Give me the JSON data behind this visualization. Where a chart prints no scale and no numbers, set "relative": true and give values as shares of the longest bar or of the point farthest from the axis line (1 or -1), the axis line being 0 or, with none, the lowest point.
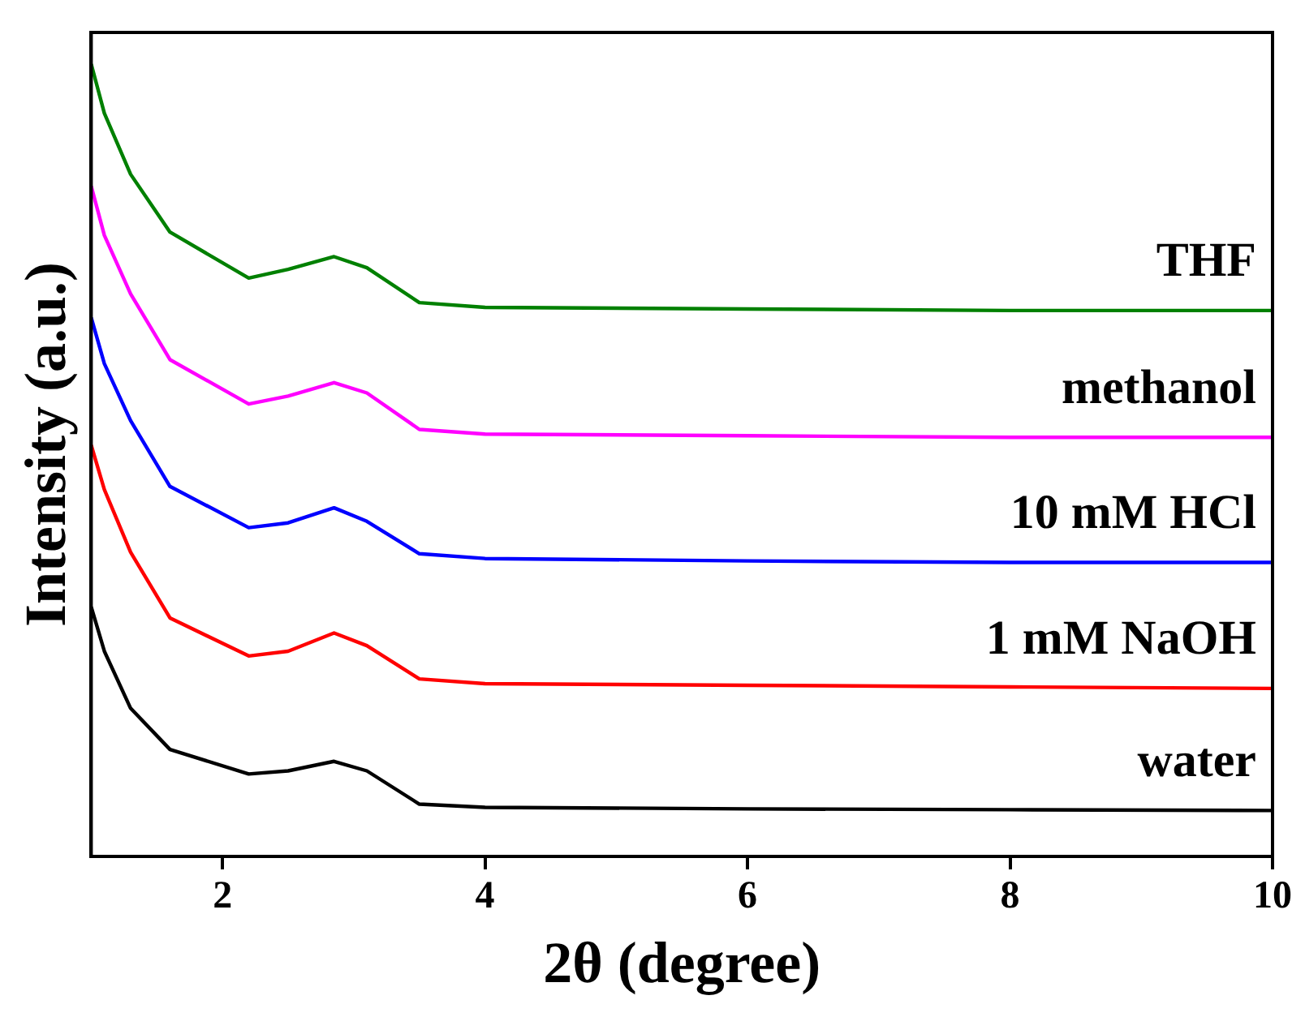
{
  "chart_data": {
    "type": "line",
    "xlabel": "2θ (degree)",
    "ylabel": "Intensity (a.u.)",
    "relative": true,
    "xlim": [
      1,
      10
    ],
    "xticks": [
      2,
      4,
      6,
      8,
      10
    ],
    "legend": false,
    "grid": false,
    "marker": "none",
    "line_style": "solid",
    "x": [
      1,
      1.1,
      1.3,
      1.6,
      2.2,
      2.5,
      2.85,
      3.1,
      3.5,
      4,
      6,
      8,
      10
    ],
    "series": [
      {
        "name": "water",
        "color": "#000000",
        "values": [
          0.315,
          0.259,
          0.187,
          0.135,
          0.104,
          0.108,
          0.12,
          0.108,
          0.066,
          0.062,
          0.06,
          0.059,
          0.058
        ]
      },
      {
        "name": "1 mM NaOH",
        "color": "#ff0000",
        "values": [
          0.519,
          0.463,
          0.384,
          0.301,
          0.253,
          0.259,
          0.282,
          0.266,
          0.224,
          0.218,
          0.216,
          0.214,
          0.212
        ]
      },
      {
        "name": "10 mM HCl",
        "color": "#0000ff",
        "values": [
          0.68,
          0.622,
          0.55,
          0.467,
          0.415,
          0.421,
          0.44,
          0.423,
          0.382,
          0.376,
          0.373,
          0.371,
          0.371
        ]
      },
      {
        "name": "methanol",
        "color": "#ff00ff",
        "values": [
          0.846,
          0.784,
          0.71,
          0.627,
          0.571,
          0.581,
          0.598,
          0.585,
          0.539,
          0.533,
          0.531,
          0.529,
          0.529
        ]
      },
      {
        "name": "THF",
        "color": "#008000",
        "values": [
          1,
          0.938,
          0.861,
          0.788,
          0.73,
          0.741,
          0.757,
          0.743,
          0.699,
          0.693,
          0.691,
          0.689,
          0.689
        ]
      }
    ]
  }
}
